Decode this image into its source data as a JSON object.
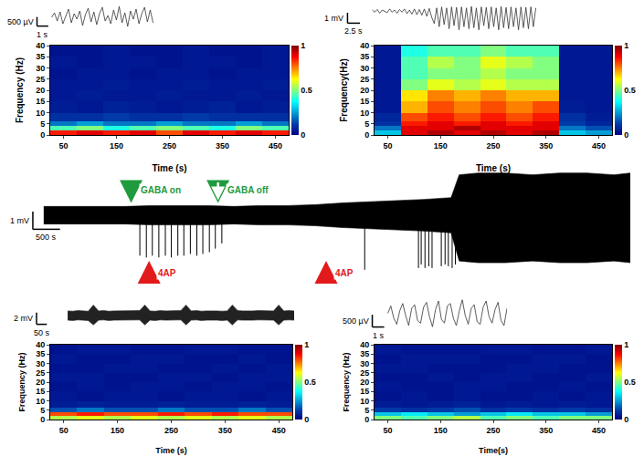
{
  "chart_data": [
    {
      "type": "band",
      "color": "#000000",
      "tick_labels": false,
      "xlim": [
        -670,
        10800
      ],
      "ylim": [
        -4.2,
        2.8
      ],
      "x": [
        0,
        500,
        1000,
        1500,
        2000,
        2500,
        3000,
        3500,
        4000,
        4500,
        5000,
        5500,
        5900,
        6000,
        6500,
        7000,
        7500,
        7650,
        8000,
        8500,
        9000,
        9500,
        10000,
        10500,
        10800
      ],
      "upper": [
        0.5,
        0.5,
        0.5,
        0.5,
        0.55,
        0.55,
        0.55,
        0.5,
        0.55,
        0.55,
        0.6,
        0.7,
        0.75,
        0.8,
        0.85,
        0.9,
        1.0,
        2.3,
        2.4,
        2.4,
        2.3,
        2.4,
        2.4,
        2.3,
        2.4
      ],
      "lower": [
        -0.5,
        -0.5,
        -0.5,
        -0.5,
        -0.55,
        -0.55,
        -0.55,
        -0.5,
        -0.55,
        -0.55,
        -0.6,
        -0.7,
        -0.75,
        -0.8,
        -0.85,
        -0.9,
        -1.0,
        -2.6,
        -2.7,
        -2.7,
        -2.6,
        -2.7,
        -2.7,
        -2.6,
        -2.7
      ],
      "spikes": {
        "x": [
          1770,
          1890,
          2000,
          2120,
          2240,
          2350,
          2470,
          2580,
          2700,
          2820,
          2930,
          3050,
          3160,
          3280,
          5910,
          6900,
          6950,
          7020,
          7090,
          7150,
          7320,
          7390,
          7450,
          7520,
          7580
        ],
        "y": [
          -2.3,
          -2.4,
          -2.3,
          -2.4,
          -2.3,
          -2.4,
          -2.3,
          -2.3,
          -2.2,
          -2.3,
          -2.2,
          -2.1,
          -1.9,
          -1.6,
          -3.1,
          -3.0,
          -2.8,
          -3.0,
          -2.9,
          -3.0,
          -2.9,
          -2.8,
          -2.9,
          -3.0,
          -2.8
        ]
      },
      "scale_bar": {
        "v": 1,
        "t": 500,
        "v_label": "1 mV",
        "t_label": "500 s"
      },
      "annotations": [
        {
          "text": "GABA on",
          "x": 1610,
          "color": "#1f9a3c",
          "marker": "arrow_down"
        },
        {
          "text": "4AP",
          "x": 1940,
          "color": "#e31a1c",
          "marker": "arrow_up"
        },
        {
          "text": "GABA off",
          "x": 3210,
          "color": "#1f9a3c",
          "marker": "arrow_down_open"
        },
        {
          "text": "4AP",
          "x": 5200,
          "color": "#e31a1c",
          "marker": "arrow_up"
        }
      ]
    },
    {
      "type": "line",
      "color": "#333333",
      "tick_labels": false,
      "xlim": [
        -1.5,
        9.2
      ],
      "ylim": [
        -800,
        800
      ],
      "x": [
        0,
        0.25,
        0.5,
        0.75,
        1,
        1.25,
        1.5,
        1.75,
        2,
        2.25,
        2.5,
        2.75,
        3,
        3.25,
        3.5,
        3.75,
        4,
        4.25,
        4.5,
        4.75,
        5,
        5.25,
        5.5,
        5.75,
        6,
        6.25,
        6.5,
        6.75,
        7,
        7.25,
        7.5,
        7.75,
        8,
        8.25,
        8.5,
        8.75,
        9
      ],
      "values": [
        0,
        250,
        -200,
        300,
        -350,
        100,
        450,
        -300,
        200,
        -100,
        350,
        -450,
        150,
        500,
        -250,
        300,
        -400,
        200,
        550,
        -200,
        100,
        -350,
        400,
        -150,
        600,
        -300,
        250,
        -500,
        350,
        -100,
        450,
        -350,
        200,
        550,
        -250,
        400,
        -300
      ],
      "scale_bar": {
        "v": 500,
        "t": 1,
        "v_label": "500 µV",
        "t_label": "1 s"
      }
    },
    {
      "type": "heatmap",
      "x_label": "Time (s)",
      "y_label": "Frequency (Hz)",
      "xlim": [
        25,
        475
      ],
      "ylim": [
        0,
        40
      ],
      "xticks": [
        50,
        150,
        250,
        350,
        450
      ],
      "yticks": [
        0,
        5,
        10,
        15,
        20,
        25,
        30,
        35,
        40
      ],
      "zlim": [
        0,
        1
      ],
      "zticks": [
        0,
        0.5,
        1
      ],
      "x": [
        50,
        100,
        150,
        200,
        250,
        300,
        350,
        400,
        450
      ],
      "y": [
        1,
        3,
        5,
        7.5,
        12.5,
        17.5,
        22.5,
        27.5,
        32.5,
        37.5
      ],
      "z": [
        [
          0.85,
          0.9,
          0.85,
          0.9,
          0.8,
          0.9,
          0.85,
          0.9,
          0.85
        ],
        [
          0.45,
          0.5,
          0.4,
          0.45,
          0.5,
          0.45,
          0.4,
          0.5,
          0.45
        ],
        [
          0.2,
          0.25,
          0.2,
          0.2,
          0.25,
          0.2,
          0.2,
          0.25,
          0.2
        ],
        [
          0.1,
          0.1,
          0.12,
          0.1,
          0.1,
          0.12,
          0.1,
          0.1,
          0.1
        ],
        [
          0.06,
          0.05,
          0.07,
          0.06,
          0.05,
          0.06,
          0.07,
          0.05,
          0.06
        ],
        [
          0.05,
          0.06,
          0.05,
          0.05,
          0.06,
          0.05,
          0.05,
          0.06,
          0.05
        ],
        [
          0.05,
          0.05,
          0.06,
          0.05,
          0.05,
          0.06,
          0.05,
          0.05,
          0.06
        ],
        [
          0.04,
          0.05,
          0.05,
          0.04,
          0.05,
          0.05,
          0.04,
          0.05,
          0.05
        ],
        [
          0.05,
          0.04,
          0.05,
          0.05,
          0.04,
          0.05,
          0.05,
          0.04,
          0.05
        ],
        [
          0.04,
          0.04,
          0.05,
          0.04,
          0.04,
          0.05,
          0.04,
          0.04,
          0.05
        ]
      ]
    },
    {
      "type": "line",
      "color": "#333333",
      "tick_labels": false,
      "xlim": [
        -6,
        34
      ],
      "ylim": [
        -2,
        0.8
      ],
      "x": [
        0,
        0.5,
        1,
        1.5,
        2,
        2.5,
        3,
        3.5,
        4,
        4.5,
        5,
        5.5,
        6,
        6.5,
        7,
        7.5,
        8,
        8.5,
        9,
        9.5,
        10,
        10.5,
        11,
        11.5,
        12,
        12.5,
        13,
        13.5,
        14,
        14.5,
        15,
        15.5,
        16,
        16.5,
        17,
        17.5,
        18,
        18.5,
        19,
        19.5,
        20,
        20.5,
        21,
        21.5,
        22,
        22.5,
        23,
        23.5,
        24,
        24.5,
        25,
        25.5,
        26,
        26.5,
        27,
        27.5,
        28,
        28.5,
        29,
        29.5,
        30,
        30.5,
        31,
        31.5,
        32,
        32.5,
        33
      ],
      "values": [
        0.1,
        -0.1,
        0.15,
        -0.2,
        0.1,
        0,
        -0.15,
        0.2,
        -0.1,
        0.1,
        -0.2,
        0.15,
        -0.1,
        0.2,
        -0.25,
        0.1,
        -0.3,
        0.2,
        -0.35,
        0.15,
        -0.4,
        0.2,
        -0.5,
        0.25,
        -0.6,
        -1.2,
        0.3,
        -1.5,
        0.4,
        -1.3,
        0.3,
        -1.7,
        0.4,
        -1.4,
        0.35,
        -1.8,
        0.4,
        -1.5,
        0.3,
        -1.7,
        0.45,
        -1.6,
        0.3,
        -1.8,
        0.4,
        -1.4,
        0.35,
        -1.7,
        0.4,
        -1.5,
        0.3,
        -1.8,
        0.45,
        -1.6,
        0.35,
        -1.7,
        0.4,
        -1.5,
        0.3,
        -1.8,
        0.4,
        -1.6,
        0.35,
        -1.7,
        0.4,
        -1.5,
        0.3
      ],
      "scale_bar": {
        "v": 1,
        "t": 2.5,
        "v_label": "1 mV",
        "t_label": "2.5 s"
      }
    },
    {
      "type": "heatmap",
      "x_label": "Time (s)",
      "y_label": "Frequency(Hz)",
      "xlim": [
        25,
        475
      ],
      "ylim": [
        0,
        40
      ],
      "xticks": [
        50,
        150,
        250,
        350,
        450
      ],
      "yticks": [
        0,
        5,
        10,
        15,
        20,
        25,
        30,
        35,
        40
      ],
      "zlim": [
        0,
        1
      ],
      "zticks": [
        0,
        0.5,
        1
      ],
      "x": [
        50,
        100,
        150,
        200,
        250,
        300,
        350,
        400,
        450
      ],
      "y": [
        1,
        3,
        5,
        7.5,
        12.5,
        17.5,
        22.5,
        27.5,
        32.5,
        37.5
      ],
      "z": [
        [
          0.3,
          0.9,
          0.95,
          0.9,
          0.95,
          0.9,
          0.95,
          0.3,
          0.25
        ],
        [
          0.2,
          0.9,
          0.9,
          0.95,
          0.9,
          0.9,
          0.9,
          0.2,
          0.15
        ],
        [
          0.1,
          0.85,
          0.9,
          0.85,
          0.9,
          0.85,
          0.9,
          0.12,
          0.08
        ],
        [
          0.08,
          0.8,
          0.85,
          0.8,
          0.85,
          0.8,
          0.85,
          0.1,
          0.06
        ],
        [
          0.05,
          0.7,
          0.8,
          0.75,
          0.8,
          0.75,
          0.8,
          0.06,
          0.05
        ],
        [
          0.05,
          0.65,
          0.75,
          0.7,
          0.75,
          0.7,
          0.7,
          0.05,
          0.05
        ],
        [
          0.05,
          0.5,
          0.6,
          0.55,
          0.6,
          0.55,
          0.55,
          0.05,
          0.05
        ],
        [
          0.05,
          0.45,
          0.5,
          0.5,
          0.55,
          0.5,
          0.5,
          0.05,
          0.05
        ],
        [
          0.05,
          0.45,
          0.55,
          0.5,
          0.6,
          0.55,
          0.5,
          0.05,
          0.05
        ],
        [
          0.05,
          0.4,
          0.45,
          0.45,
          0.5,
          0.45,
          0.45,
          0.05,
          0.05
        ]
      ]
    },
    {
      "type": "band",
      "color": "#222222",
      "tick_labels": false,
      "xlim": [
        -160,
        1100
      ],
      "ylim": [
        -2.5,
        2.5
      ],
      "x": [
        0,
        25,
        50,
        75,
        100,
        125,
        150,
        175,
        200,
        225,
        250,
        275,
        300,
        325,
        350,
        375,
        400,
        425,
        450,
        475,
        500,
        525,
        550,
        575,
        600,
        625,
        650,
        675,
        700,
        725,
        750,
        775,
        800,
        825,
        850,
        875,
        900,
        925,
        950,
        975,
        1000,
        1025,
        1050,
        1075,
        1100
      ],
      "upper": [
        0.8,
        0.75,
        0.85,
        0.8,
        0.75,
        1.8,
        0.8,
        0.85,
        0.75,
        0.8,
        0.8,
        0.85,
        0.75,
        0.8,
        0.85,
        1.8,
        0.8,
        0.75,
        0.85,
        0.8,
        0.8,
        0.75,
        0.85,
        1.8,
        0.8,
        0.85,
        0.75,
        0.8,
        0.85,
        0.8,
        0.75,
        0.8,
        1.8,
        0.85,
        0.8,
        0.75,
        0.8,
        0.85,
        0.8,
        0.75,
        0.8,
        1.8,
        0.8,
        0.85,
        0.8
      ],
      "lower": [
        -0.8,
        -0.85,
        -0.75,
        -0.8,
        -0.85,
        -1.6,
        -0.8,
        -0.75,
        -0.85,
        -0.8,
        -0.8,
        -0.75,
        -0.85,
        -0.8,
        -0.75,
        -1.6,
        -0.8,
        -0.85,
        -0.75,
        -0.8,
        -0.8,
        -0.85,
        -0.75,
        -1.6,
        -0.8,
        -0.75,
        -0.85,
        -0.8,
        -0.75,
        -0.8,
        -0.85,
        -0.8,
        -1.6,
        -0.75,
        -0.8,
        -0.85,
        -0.8,
        -0.75,
        -0.8,
        -0.85,
        -0.8,
        -1.6,
        -0.8,
        -0.75,
        -0.8
      ],
      "scale_bar": {
        "v": 2,
        "t": 50,
        "v_label": "2 mV",
        "t_label": "50 s"
      }
    },
    {
      "type": "heatmap",
      "x_label": "Time (s)",
      "y_label": "Frequency (Hz)",
      "xlim": [
        25,
        475
      ],
      "ylim": [
        0,
        40
      ],
      "xticks": [
        50,
        150,
        250,
        350,
        450
      ],
      "yticks": [
        0,
        5,
        10,
        15,
        20,
        25,
        30,
        35,
        40
      ],
      "zlim": [
        0,
        1
      ],
      "zticks": [
        0,
        0.5,
        1
      ],
      "x": [
        50,
        100,
        150,
        200,
        250,
        300,
        350,
        400,
        450
      ],
      "y": [
        1,
        3,
        5,
        7.5,
        12.5,
        17.5,
        22.5,
        27.5,
        32.5,
        37.5
      ],
      "z": [
        [
          0.55,
          0.6,
          0.55,
          0.6,
          0.55,
          0.6,
          0.55,
          0.6,
          0.55
        ],
        [
          0.8,
          0.85,
          0.8,
          0.8,
          0.85,
          0.8,
          0.85,
          0.8,
          0.8
        ],
        [
          0.15,
          0.2,
          0.15,
          0.15,
          0.2,
          0.15,
          0.15,
          0.2,
          0.15
        ],
        [
          0.06,
          0.07,
          0.06,
          0.06,
          0.07,
          0.06,
          0.06,
          0.07,
          0.06
        ],
        [
          0.05,
          0.04,
          0.05,
          0.05,
          0.04,
          0.05,
          0.05,
          0.04,
          0.05
        ],
        [
          0.04,
          0.05,
          0.04,
          0.05,
          0.05,
          0.04,
          0.05,
          0.05,
          0.04
        ],
        [
          0.05,
          0.05,
          0.04,
          0.04,
          0.05,
          0.05,
          0.04,
          0.05,
          0.05
        ],
        [
          0.04,
          0.04,
          0.05,
          0.05,
          0.04,
          0.04,
          0.05,
          0.04,
          0.05
        ],
        [
          0.05,
          0.04,
          0.04,
          0.05,
          0.05,
          0.04,
          0.04,
          0.05,
          0.04
        ],
        [
          0.04,
          0.05,
          0.05,
          0.04,
          0.04,
          0.05,
          0.05,
          0.04,
          0.04
        ]
      ]
    },
    {
      "type": "line",
      "color": "#333333",
      "tick_labels": false,
      "xlim": [
        -1.5,
        10
      ],
      "ylim": [
        -800,
        800
      ],
      "x": [
        0,
        0.25,
        0.5,
        0.75,
        1,
        1.25,
        1.5,
        1.75,
        2,
        2.25,
        2.5,
        2.75,
        3,
        3.25,
        3.5,
        3.75,
        4,
        4.25,
        4.5,
        4.75,
        5,
        5.25,
        5.5,
        5.75,
        6,
        6.25,
        6.5,
        6.75,
        7,
        7.25,
        7.5,
        7.75,
        8,
        8.25,
        8.5,
        8.75,
        9,
        9.25,
        9.5,
        9.75,
        10
      ],
      "values": [
        0,
        300,
        -200,
        -450,
        100,
        400,
        -100,
        -500,
        200,
        350,
        -300,
        -400,
        250,
        450,
        -150,
        -550,
        150,
        500,
        -250,
        -400,
        300,
        400,
        -200,
        -500,
        100,
        550,
        -100,
        -450,
        200,
        350,
        -350,
        -450,
        250,
        500,
        -150,
        -400,
        150,
        450,
        -300,
        -500,
        200
      ],
      "scale_bar": {
        "v": 500,
        "t": 1,
        "v_label": "500 µV",
        "t_label": "1 s"
      }
    },
    {
      "type": "heatmap",
      "x_label": "Time(s)",
      "y_label": "Frequency (Hz)",
      "xlim": [
        25,
        475
      ],
      "ylim": [
        0,
        40
      ],
      "xticks": [
        50,
        150,
        250,
        350,
        450
      ],
      "yticks": [
        0,
        5,
        10,
        15,
        20,
        25,
        30,
        35,
        40
      ],
      "zlim": [
        0,
        1
      ],
      "zticks": [
        0,
        0.5,
        1
      ],
      "x": [
        50,
        100,
        150,
        200,
        250,
        300,
        350,
        400,
        450
      ],
      "y": [
        1,
        3,
        5,
        7.5,
        12.5,
        17.5,
        22.5,
        27.5,
        32.5,
        37.5
      ],
      "z": [
        [
          0.5,
          0.45,
          0.5,
          0.55,
          0.45,
          0.5,
          0.45,
          0.5,
          0.5
        ],
        [
          0.3,
          0.35,
          0.3,
          0.25,
          0.3,
          0.35,
          0.3,
          0.3,
          0.25
        ],
        [
          0.12,
          0.1,
          0.12,
          0.15,
          0.1,
          0.12,
          0.1,
          0.12,
          0.1
        ],
        [
          0.06,
          0.05,
          0.06,
          0.07,
          0.05,
          0.06,
          0.05,
          0.06,
          0.05
        ],
        [
          0.04,
          0.05,
          0.04,
          0.05,
          0.04,
          0.04,
          0.05,
          0.04,
          0.05
        ],
        [
          0.05,
          0.04,
          0.04,
          0.05,
          0.05,
          0.04,
          0.04,
          0.05,
          0.04
        ],
        [
          0.04,
          0.04,
          0.05,
          0.04,
          0.05,
          0.05,
          0.04,
          0.04,
          0.05
        ],
        [
          0.05,
          0.05,
          0.04,
          0.04,
          0.04,
          0.05,
          0.05,
          0.04,
          0.04
        ],
        [
          0.04,
          0.05,
          0.05,
          0.05,
          0.04,
          0.04,
          0.05,
          0.05,
          0.04
        ],
        [
          0.05,
          0.04,
          0.04,
          0.04,
          0.05,
          0.05,
          0.04,
          0.04,
          0.05
        ]
      ]
    }
  ]
}
